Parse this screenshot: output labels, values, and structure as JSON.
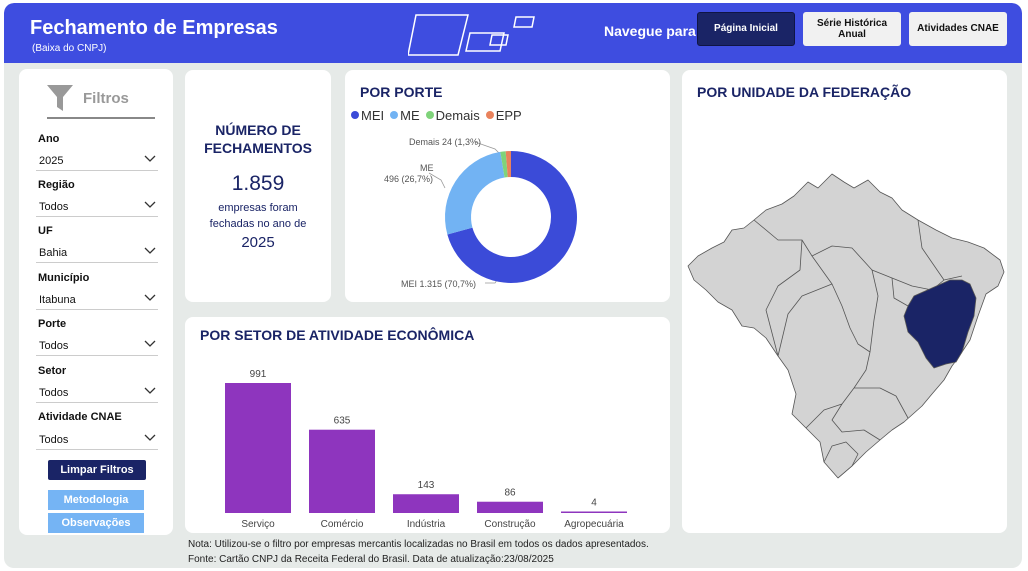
{
  "header": {
    "title": "Fechamento de Empresas",
    "subtitle": "(Baixa do CNPJ)",
    "nav_label": "Navegue para:",
    "nav_buttons": [
      "Página Inicial",
      "Série Histórica Anual",
      "Atividades CNAE"
    ]
  },
  "filters": {
    "title": "Filtros",
    "fields": [
      {
        "label": "Ano",
        "value": "2025"
      },
      {
        "label": "Região",
        "value": "Todos"
      },
      {
        "label": "UF",
        "value": "Bahia"
      },
      {
        "label": "Município",
        "value": "Itabuna"
      },
      {
        "label": "Porte",
        "value": "Todos"
      },
      {
        "label": "Setor",
        "value": "Todos"
      },
      {
        "label": "Atividade CNAE",
        "value": "Todos"
      }
    ],
    "clear_label": "Limpar Filtros",
    "methodology_label": "Metodologia",
    "observations_label": "Observações"
  },
  "kpi": {
    "title": "NÚMERO DE FECHAMENTOS",
    "value": "1.859",
    "description": "empresas foram fechadas no ano de",
    "year": "2025"
  },
  "porte": {
    "title": "POR PORTE",
    "legend": [
      {
        "name": "MEI",
        "color": "#3b4bd8"
      },
      {
        "name": "ME",
        "color": "#72b3f3"
      },
      {
        "name": "Demais",
        "color": "#7fd37a"
      },
      {
        "name": "EPP",
        "color": "#e9825c"
      }
    ],
    "labels": {
      "mei": "MEI 1.315 (70,7%)",
      "me_name": "ME",
      "me_value": "496 (26,7%)",
      "demais": "Demais 24 (1,3%)"
    }
  },
  "setor": {
    "title": "POR SETOR DE ATIVIDADE ECONÔMICA"
  },
  "uf": {
    "title": "POR UNIDADE DA FEDERAÇÃO",
    "highlighted": "Bahia",
    "highlight_color": "#1a2466",
    "base_color": "#d3d3d3"
  },
  "footer": {
    "note": "Nota: Utilizou-se o filtro por empresas mercantis localizadas no Brasil em todos os dados apresentados.",
    "source": "Fonte: Cartão CNPJ da Receita Federal do Brasil. Data de atualização:23/08/2025"
  },
  "chart_data": [
    {
      "type": "pie",
      "title": "POR PORTE",
      "categories": [
        "MEI",
        "ME",
        "Demais",
        "EPP"
      ],
      "values": [
        1315,
        496,
        24,
        24
      ],
      "colors": [
        "#3b4bd8",
        "#72b3f3",
        "#7fd37a",
        "#e9825c"
      ],
      "legend": "top-left"
    },
    {
      "type": "bar",
      "title": "POR SETOR DE ATIVIDADE ECONÔMICA",
      "categories": [
        "Serviço",
        "Comércio",
        "Indústria",
        "Construção",
        "Agropecuária"
      ],
      "values": [
        991,
        635,
        143,
        86,
        4
      ],
      "color": "#8e35be",
      "ylim": [
        0,
        991
      ],
      "grid": false
    }
  ]
}
